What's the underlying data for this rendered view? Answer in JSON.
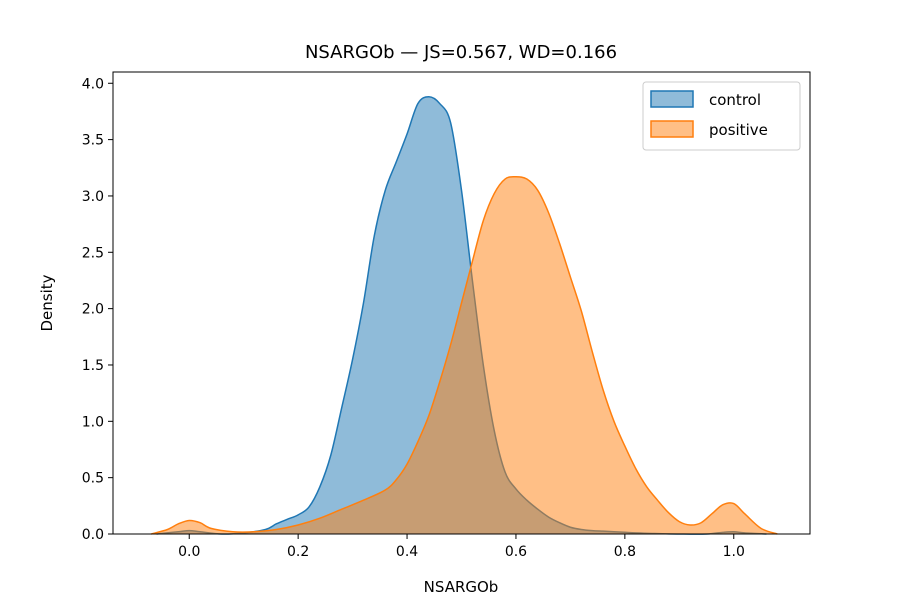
{
  "chart_data": {
    "type": "area",
    "title": "NSARGOb — JS=0.567, WD=0.166",
    "xlabel": "NSARGOb",
    "ylabel": "Density",
    "xlim": [
      -0.14,
      1.14
    ],
    "ylim": [
      0,
      4.1
    ],
    "xticks": [
      0.0,
      0.2,
      0.4,
      0.6,
      0.8,
      1.0
    ],
    "xtick_labels": [
      "0.0",
      "0.2",
      "0.4",
      "0.6",
      "0.8",
      "1.0"
    ],
    "yticks": [
      0.0,
      0.5,
      1.0,
      1.5,
      2.0,
      2.5,
      3.0,
      3.5,
      4.0
    ],
    "ytick_labels": [
      "0.0",
      "0.5",
      "1.0",
      "1.5",
      "2.0",
      "2.5",
      "3.0",
      "3.5",
      "4.0"
    ],
    "grid": false,
    "legend_position": "top-right",
    "series": [
      {
        "name": "control",
        "color": "#1f77b4",
        "fill": "#1f77b4",
        "fill_opacity": 0.5,
        "x": [
          -0.06,
          -0.02,
          0.0,
          0.02,
          0.06,
          0.1,
          0.14,
          0.16,
          0.18,
          0.2,
          0.22,
          0.24,
          0.26,
          0.28,
          0.3,
          0.32,
          0.34,
          0.36,
          0.38,
          0.4,
          0.42,
          0.44,
          0.46,
          0.48,
          0.5,
          0.52,
          0.54,
          0.56,
          0.58,
          0.6,
          0.62,
          0.64,
          0.66,
          0.68,
          0.7,
          0.72,
          0.74,
          0.76,
          0.78,
          0.8,
          0.82,
          0.85,
          0.9,
          0.95,
          0.98,
          1.0,
          1.02,
          1.06
        ],
        "y": [
          0.0,
          0.02,
          0.03,
          0.02,
          0.0,
          0.01,
          0.04,
          0.09,
          0.13,
          0.17,
          0.24,
          0.42,
          0.7,
          1.12,
          1.55,
          2.05,
          2.65,
          3.05,
          3.3,
          3.55,
          3.82,
          3.88,
          3.82,
          3.65,
          3.05,
          2.25,
          1.5,
          0.92,
          0.55,
          0.4,
          0.3,
          0.22,
          0.15,
          0.1,
          0.06,
          0.04,
          0.03,
          0.025,
          0.02,
          0.015,
          0.01,
          0.005,
          0.0,
          0.0,
          0.015,
          0.02,
          0.01,
          0.0
        ]
      },
      {
        "name": "positive",
        "color": "#ff7f0e",
        "fill": "#ff7f0e",
        "fill_opacity": 0.5,
        "x": [
          -0.07,
          -0.04,
          -0.02,
          0.0,
          0.02,
          0.04,
          0.08,
          0.12,
          0.16,
          0.2,
          0.24,
          0.28,
          0.32,
          0.36,
          0.38,
          0.4,
          0.42,
          0.44,
          0.46,
          0.48,
          0.5,
          0.52,
          0.54,
          0.56,
          0.58,
          0.6,
          0.62,
          0.64,
          0.66,
          0.68,
          0.7,
          0.72,
          0.74,
          0.76,
          0.78,
          0.8,
          0.82,
          0.84,
          0.86,
          0.88,
          0.9,
          0.92,
          0.94,
          0.96,
          0.98,
          1.0,
          1.02,
          1.05,
          1.08
        ],
        "y": [
          0.0,
          0.04,
          0.09,
          0.12,
          0.1,
          0.05,
          0.02,
          0.02,
          0.04,
          0.08,
          0.14,
          0.22,
          0.3,
          0.39,
          0.48,
          0.62,
          0.82,
          1.05,
          1.35,
          1.68,
          2.05,
          2.42,
          2.78,
          3.02,
          3.15,
          3.17,
          3.15,
          3.05,
          2.85,
          2.58,
          2.28,
          1.98,
          1.62,
          1.28,
          1.0,
          0.78,
          0.58,
          0.42,
          0.3,
          0.19,
          0.11,
          0.08,
          0.1,
          0.18,
          0.26,
          0.27,
          0.18,
          0.05,
          0.0
        ]
      }
    ]
  }
}
